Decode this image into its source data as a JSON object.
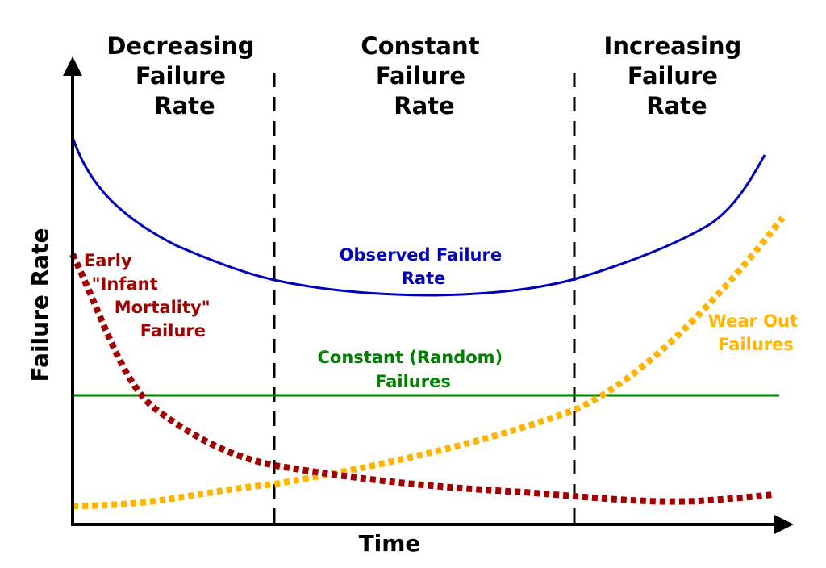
{
  "axes": {
    "x_label": "Time",
    "y_label": "Failure Rate"
  },
  "regions": [
    {
      "lines": [
        "Decreasing",
        "Failure",
        "Rate"
      ]
    },
    {
      "lines": [
        "Constant",
        "Failure",
        "Rate"
      ]
    },
    {
      "lines": [
        "Increasing",
        "Failure",
        "Rate"
      ]
    }
  ],
  "curves": {
    "observed": {
      "lines": [
        "Observed Failure",
        "Rate"
      ],
      "color": "#0000bb",
      "style": "solid"
    },
    "infant": {
      "lines": [
        "Early",
        "\"Infant",
        "Mortality\"",
        "Failure"
      ],
      "color": "#a00000",
      "style": "dotted"
    },
    "random": {
      "lines": [
        "Constant (Random)",
        "Failures"
      ],
      "color": "#008000",
      "style": "solid"
    },
    "wearout": {
      "lines": [
        "Wear Out",
        "Failures"
      ],
      "color": "#ffb400",
      "style": "dotted"
    }
  },
  "colors": {
    "axis": "#000000",
    "divider": "#000000"
  }
}
